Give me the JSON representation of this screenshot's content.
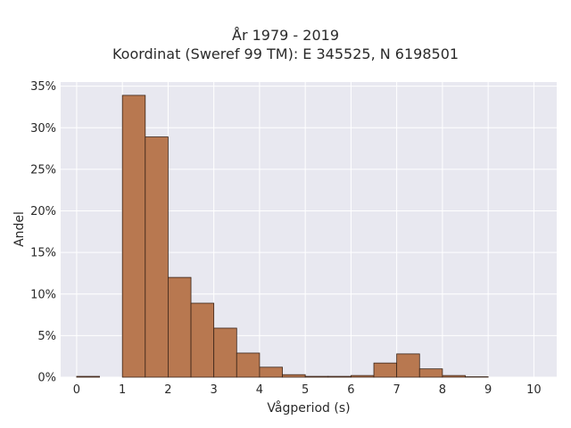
{
  "chart_data": {
    "type": "bar",
    "title_line1": "År 1979 - 2019",
    "title_line2": "Koordinat (Sweref 99 TM): E 345525, N 6198501",
    "xlabel": "Vågperiod (s)",
    "ylabel": "Andel",
    "xlim": [
      -0.35,
      10.5
    ],
    "ylim": [
      0,
      35.5
    ],
    "x_ticks": [
      0,
      1,
      2,
      3,
      4,
      5,
      6,
      7,
      8,
      9,
      10
    ],
    "x_tick_labels": [
      "0",
      "1",
      "2",
      "3",
      "4",
      "5",
      "6",
      "7",
      "8",
      "9",
      "10"
    ],
    "y_ticks": [
      0,
      5,
      10,
      15,
      20,
      25,
      30,
      35
    ],
    "y_tick_labels": [
      "0%",
      "5%",
      "10%",
      "15%",
      "20%",
      "25%",
      "30%",
      "35%"
    ],
    "bin_width": 0.5,
    "bins": [
      {
        "x0": 0.0,
        "value": 0.1
      },
      {
        "x0": 0.5,
        "value": 0.0
      },
      {
        "x0": 1.0,
        "value": 33.9
      },
      {
        "x0": 1.5,
        "value": 28.9
      },
      {
        "x0": 2.0,
        "value": 12.0
      },
      {
        "x0": 2.5,
        "value": 8.9
      },
      {
        "x0": 3.0,
        "value": 5.9
      },
      {
        "x0": 3.5,
        "value": 2.9
      },
      {
        "x0": 4.0,
        "value": 1.2
      },
      {
        "x0": 4.5,
        "value": 0.3
      },
      {
        "x0": 5.0,
        "value": 0.1
      },
      {
        "x0": 5.5,
        "value": 0.1
      },
      {
        "x0": 6.0,
        "value": 0.2
      },
      {
        "x0": 6.5,
        "value": 1.7
      },
      {
        "x0": 7.0,
        "value": 2.8
      },
      {
        "x0": 7.5,
        "value": 1.0
      },
      {
        "x0": 8.0,
        "value": 0.2
      },
      {
        "x0": 8.5,
        "value": 0.05
      }
    ],
    "grid": true,
    "colors": {
      "bar_fill": "#b87850",
      "bar_stroke": "#3a2418",
      "plot_bg": "#e8e8f0",
      "grid": "#ffffff"
    }
  }
}
